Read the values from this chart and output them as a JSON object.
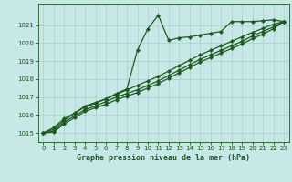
{
  "xlabel": "Graphe pression niveau de la mer (hPa)",
  "bg_color": "#c8e8e8",
  "grid_color": "#aacece",
  "line_color": "#1a5c1a",
  "marker": "D",
  "marker_size": 2.2,
  "xlim": [
    -0.5,
    23.5
  ],
  "ylim": [
    1014.5,
    1022.2
  ],
  "yticks": [
    1015,
    1016,
    1017,
    1018,
    1019,
    1020,
    1021
  ],
  "xticks": [
    0,
    1,
    2,
    3,
    4,
    5,
    6,
    7,
    8,
    9,
    10,
    11,
    12,
    13,
    14,
    15,
    16,
    17,
    18,
    19,
    20,
    21,
    22,
    23
  ],
  "line1_x": [
    0,
    1,
    2,
    3,
    4,
    5,
    6,
    7,
    8,
    9,
    10,
    11,
    12,
    13,
    14,
    15,
    16,
    17,
    18,
    19,
    20,
    21,
    22,
    23
  ],
  "line1_y": [
    1015.0,
    1015.3,
    1015.8,
    1016.1,
    1016.5,
    1016.7,
    1016.9,
    1017.2,
    1017.45,
    1019.6,
    1020.8,
    1021.55,
    1020.15,
    1020.3,
    1020.35,
    1020.45,
    1020.55,
    1020.65,
    1021.2,
    1021.2,
    1021.2,
    1021.25,
    1021.3,
    1021.2
  ],
  "line2_x": [
    0,
    1,
    2,
    3,
    4,
    5,
    6,
    7,
    8,
    9,
    10,
    11,
    12,
    13,
    14,
    15,
    16,
    17,
    18,
    19,
    20,
    21,
    22,
    23
  ],
  "line2_y": [
    1015.0,
    1015.2,
    1015.7,
    1016.1,
    1016.45,
    1016.65,
    1016.9,
    1017.15,
    1017.4,
    1017.65,
    1017.9,
    1018.15,
    1018.45,
    1018.75,
    1019.05,
    1019.35,
    1019.6,
    1019.85,
    1020.1,
    1020.35,
    1020.6,
    1020.82,
    1021.05,
    1021.2
  ],
  "line3_x": [
    0,
    1,
    2,
    3,
    4,
    5,
    6,
    7,
    8,
    9,
    10,
    11,
    12,
    13,
    14,
    15,
    16,
    17,
    18,
    19,
    20,
    21,
    22,
    23
  ],
  "line3_y": [
    1015.0,
    1015.1,
    1015.6,
    1015.95,
    1016.3,
    1016.5,
    1016.75,
    1017.0,
    1017.2,
    1017.4,
    1017.65,
    1017.9,
    1018.2,
    1018.5,
    1018.8,
    1019.1,
    1019.35,
    1019.6,
    1019.85,
    1020.1,
    1020.4,
    1020.65,
    1020.9,
    1021.2
  ],
  "line4_x": [
    0,
    1,
    2,
    3,
    4,
    5,
    6,
    7,
    8,
    9,
    10,
    11,
    12,
    13,
    14,
    15,
    16,
    17,
    18,
    19,
    20,
    21,
    22,
    23
  ],
  "line4_y": [
    1015.0,
    1015.05,
    1015.5,
    1015.85,
    1016.2,
    1016.4,
    1016.6,
    1016.85,
    1017.05,
    1017.25,
    1017.5,
    1017.75,
    1018.05,
    1018.35,
    1018.65,
    1018.95,
    1019.2,
    1019.45,
    1019.7,
    1019.95,
    1020.25,
    1020.5,
    1020.8,
    1021.2
  ]
}
